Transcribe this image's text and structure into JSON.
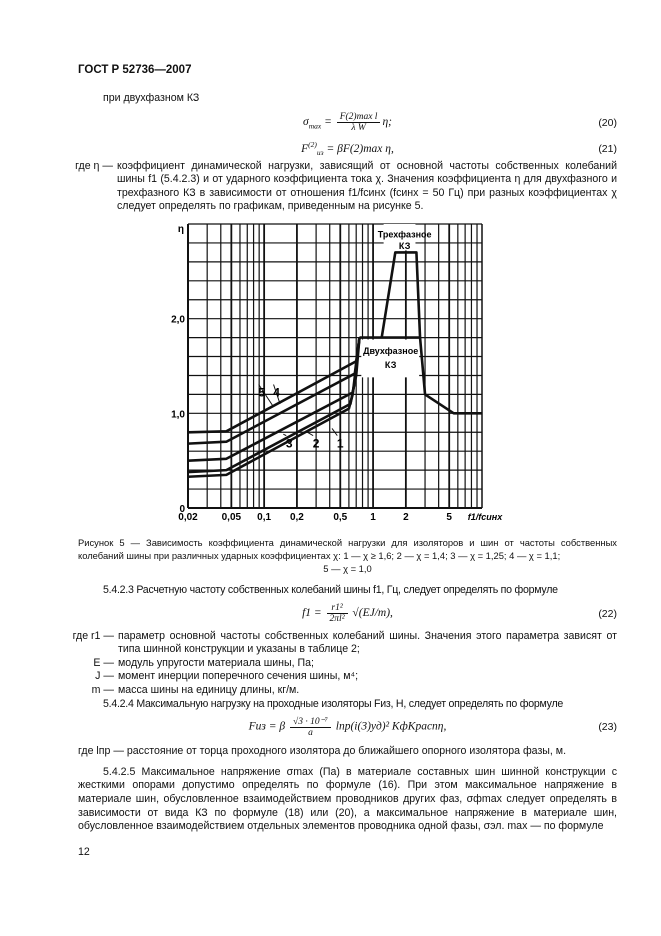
{
  "header": {
    "doc_id": "ГОСТ Р 52736—2007"
  },
  "intro": "при двухфазном КЗ",
  "eq20": {
    "lhs": "σ",
    "lhs_sub": "max",
    "num": "F(2)max l",
    "den": "λ W",
    "tail": "η;",
    "number": "(20)"
  },
  "eq21": {
    "text_lhs": "F",
    "lhs_sub": "из",
    "lhs_sup": "(2)",
    "rhs": "= βF(2)max η,",
    "number": "(21)"
  },
  "where_eta": {
    "key": "где η —",
    "text": "коэффициент динамической нагрузки, зависящий от основной частоты собственных колебаний шины f1 (5.4.2.3) и от ударного коэффициента тока χ. Значения коэффициента η для двухфазного и трехфазного КЗ в зависимости от отношения f1/fсинх (fсинх = 50 Гц) при разных коэффициентах χ следует определять по графикам, приведенным на рисунке 5."
  },
  "chart_data": {
    "type": "line",
    "ylabel": "η",
    "xlabel": "f1/fсинх",
    "x_scale": "log",
    "xlim": [
      0.02,
      10
    ],
    "ylim": [
      0,
      3.0
    ],
    "grid": true,
    "x_ticks": [
      0.02,
      0.05,
      0.1,
      0.2,
      0.5,
      1,
      2,
      5
    ],
    "x_tick_labels": [
      "0,02",
      "0,05",
      "0,1",
      "0,2",
      "0,5",
      "1",
      "2",
      "5"
    ],
    "y_ticks": [
      0,
      1.0,
      2.0
    ],
    "y_tick_labels": [
      "0",
      "1,0",
      "2,0"
    ],
    "series": [
      {
        "name": "1",
        "points": [
          [
            0.02,
            0.33
          ],
          [
            0.045,
            0.35
          ],
          [
            0.6,
            1.05
          ],
          [
            0.65,
            1.2
          ],
          [
            0.75,
            1.8
          ]
        ]
      },
      {
        "name": "2",
        "points": [
          [
            0.02,
            0.38
          ],
          [
            0.045,
            0.4
          ],
          [
            0.62,
            1.1
          ],
          [
            0.67,
            1.3
          ],
          [
            0.75,
            1.8
          ]
        ]
      },
      {
        "name": "3",
        "points": [
          [
            0.02,
            0.5
          ],
          [
            0.045,
            0.52
          ],
          [
            0.65,
            1.22
          ],
          [
            0.7,
            1.4
          ],
          [
            0.75,
            1.8
          ]
        ]
      },
      {
        "name": "4",
        "points": [
          [
            0.02,
            0.68
          ],
          [
            0.045,
            0.7
          ],
          [
            0.68,
            1.42
          ],
          [
            0.75,
            1.8
          ]
        ]
      },
      {
        "name": "5",
        "points": [
          [
            0.02,
            0.8
          ],
          [
            0.045,
            0.81
          ],
          [
            0.7,
            1.55
          ],
          [
            0.75,
            1.8
          ]
        ]
      },
      {
        "name": "Двухфазное КЗ",
        "points": [
          [
            0.75,
            1.8
          ],
          [
            2.7,
            1.8
          ],
          [
            3.0,
            1.2
          ],
          [
            5.5,
            1.0
          ],
          [
            10,
            1.0
          ]
        ]
      },
      {
        "name": "Трехфазное КЗ",
        "points": [
          [
            1.2,
            1.8
          ],
          [
            1.6,
            2.7
          ],
          [
            2.5,
            2.7
          ],
          [
            2.7,
            1.8
          ]
        ]
      }
    ],
    "annotations": [
      "Трехфазное КЗ",
      "Двухфазное КЗ",
      "1",
      "2",
      "3",
      "4",
      "5"
    ]
  },
  "figure": {
    "label_three_l1": "Трехфазное",
    "label_three_l2": "КЗ",
    "label_two_l1": "Двухфазное",
    "label_two_l2": "КЗ",
    "caption": "Рисунок 5 — Зависимость коэффициента динамической нагрузки для изоляторов и шин от частоты собственных колебаний шины при различных ударных коэффициентах χ: 1 — χ ≥ 1,6; 2 — χ = 1,4; 3 — χ = 1,25; 4 — χ = 1,1;",
    "caption_last": "5 — χ = 1,0"
  },
  "s5423": "5.4.2.3 Расчетную частоту собственных колебаний шины f1, Гц, следует определять по формуле",
  "eq22": {
    "lhs": "f1 =",
    "num": "r1²",
    "den": "2πl²",
    "root": "√(EJ/m),",
    "number": "(22)"
  },
  "terms": [
    {
      "key": "где r1 —",
      "text": "параметр основной частоты собственных колебаний шины. Значения этого параметра зависят от типа шинной конструкции и указаны в таблице 2;"
    },
    {
      "key": "E —",
      "text": "модуль упругости материала шины, Па;"
    },
    {
      "key": "J —",
      "text": "момент инерции поперечного сечения шины, м⁴;"
    },
    {
      "key": "m —",
      "text": "масса шины на единицу длины, кг/м."
    }
  ],
  "s5424": "5.4.2.4 Максимальную нагрузку на проходные изоляторы Fиз, Н, следует определять по формуле",
  "eq23": {
    "lhs": "Fиз = β",
    "num": "√3 · 10⁻⁷",
    "den": "a",
    "rhs": "lпр(i(3)уд)² KфKраспη,",
    "number": "(23)"
  },
  "where_lpr": "где lпр — расстояние от торца проходного изолятора до ближайшего опорного изолятора фазы, м.",
  "s5425": "5.4.2.5 Максимальное напряжение σmax (Па) в материале составных шин шинной конструкции с жесткими опорами допустимо определять по формуле (16). При этом максимальное напряжение в материале шин, обусловленное взаимодействием проводников других фаз, σфmax следует определять в зависимости от вида КЗ по формуле (18) или (20), а максимальное напряжение в материале шин, обусловленное взаимодействием отдельных элементов проводника одной фазы, σэл. max — по формуле",
  "page_number": "12"
}
